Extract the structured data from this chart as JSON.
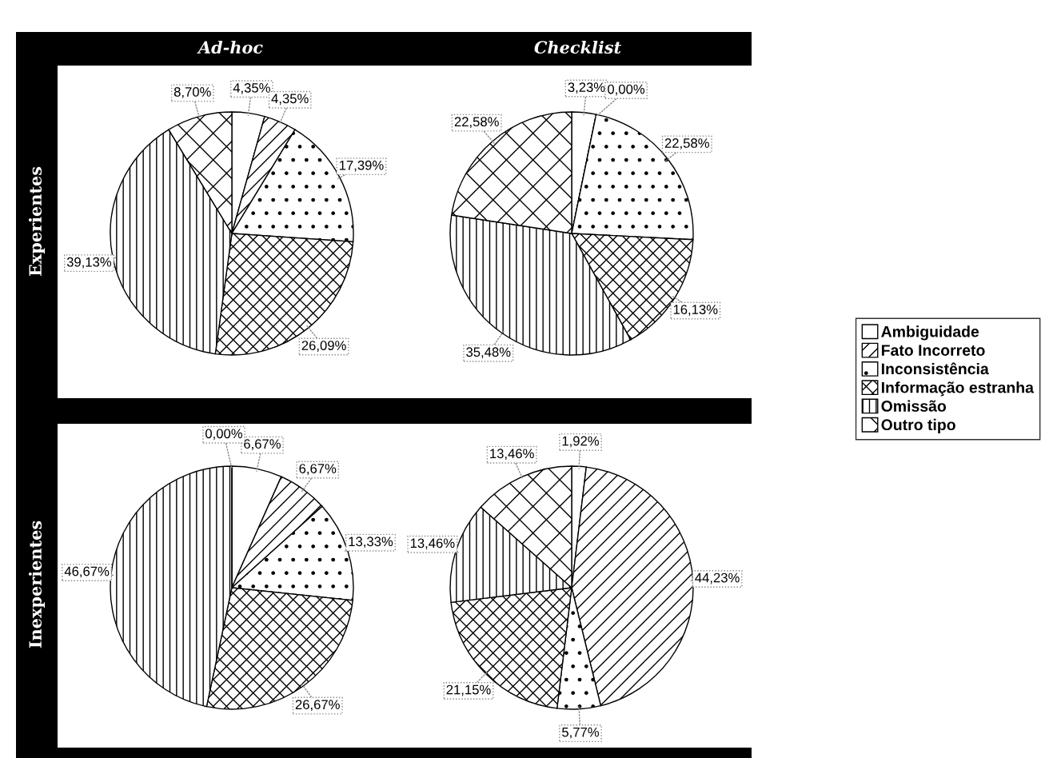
{
  "chart_data": [
    {
      "type": "pie",
      "title": "Ad-hoc",
      "ylabel": "Experientes",
      "categories": [
        "Ambiguidade",
        "Fato Incorreto",
        "Inconsistência",
        "Informação estranha",
        "Omissão",
        "Outro tipo"
      ],
      "values": [
        4.35,
        4.35,
        17.39,
        26.09,
        39.13,
        8.7
      ],
      "value_labels": [
        "4,35%",
        "4,35%",
        "17,39%",
        "26,09%",
        "39,13%",
        "8,70%"
      ],
      "legend": "right"
    },
    {
      "type": "pie",
      "title": "Checklist",
      "categories": [
        null,
        null,
        null,
        null,
        null,
        null
      ],
      "values": [
        3.23,
        0.0,
        22.58,
        16.13,
        35.48,
        22.58
      ],
      "value_labels": [
        "3,23%",
        "0,00%",
        "22,58%",
        "16,13%",
        "35,48%",
        "22,58%"
      ]
    },
    {
      "type": "pie",
      "ylabel": "Inexperientes",
      "categories": [
        null,
        null,
        null,
        null,
        null,
        null
      ],
      "values": [
        6.67,
        6.67,
        13.33,
        26.67,
        46.67,
        0.0
      ],
      "value_labels": [
        "6,67%",
        "6,67%",
        "13,33%",
        "26,67%",
        "46,67%",
        "0,00%"
      ]
    },
    {
      "type": "pie",
      "categories": [
        null,
        null,
        null,
        null,
        null,
        null
      ],
      "values": [
        1.92,
        44.23,
        5.77,
        21.15,
        13.46,
        13.46
      ],
      "value_labels": [
        "1,92%",
        "44,23%",
        "5,77%",
        "21,15%",
        "13,46%",
        "13,46%"
      ]
    }
  ]
}
